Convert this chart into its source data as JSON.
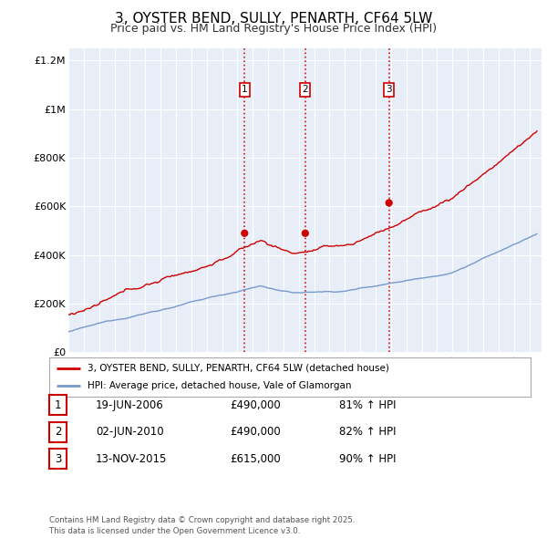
{
  "title": "3, OYSTER BEND, SULLY, PENARTH, CF64 5LW",
  "subtitle": "Price paid vs. HM Land Registry's House Price Index (HPI)",
  "title_fontsize": 11,
  "subtitle_fontsize": 9,
  "background_color": "#ffffff",
  "plot_bg_color": "#e8eef8",
  "grid_color": "#ffffff",
  "ylim": [
    0,
    1250000
  ],
  "yticks": [
    0,
    200000,
    400000,
    600000,
    800000,
    1000000,
    1200000
  ],
  "ytick_labels": [
    "£0",
    "£200K",
    "£400K",
    "£600K",
    "£800K",
    "£1M",
    "£1.2M"
  ],
  "red_line_color": "#cc0000",
  "blue_line_color": "#7799cc",
  "sale1_x": 2006.47,
  "sale1_y": 490000,
  "sale2_x": 2010.42,
  "sale2_y": 490000,
  "sale3_x": 2015.87,
  "sale3_y": 615000,
  "vline_color": "#cc0000",
  "legend_red_label": "3, OYSTER BEND, SULLY, PENARTH, CF64 5LW (detached house)",
  "legend_blue_label": "HPI: Average price, detached house, Vale of Glamorgan",
  "table_rows": [
    {
      "num": "1",
      "date": "19-JUN-2006",
      "price": "£490,000",
      "hpi": "81% ↑ HPI"
    },
    {
      "num": "2",
      "date": "02-JUN-2010",
      "price": "£490,000",
      "hpi": "82% ↑ HPI"
    },
    {
      "num": "3",
      "date": "13-NOV-2015",
      "price": "£615,000",
      "hpi": "90% ↑ HPI"
    }
  ],
  "footer": "Contains HM Land Registry data © Crown copyright and database right 2025.\nThis data is licensed under the Open Government Licence v3.0.",
  "xmin": 1995.0,
  "xmax": 2025.8
}
